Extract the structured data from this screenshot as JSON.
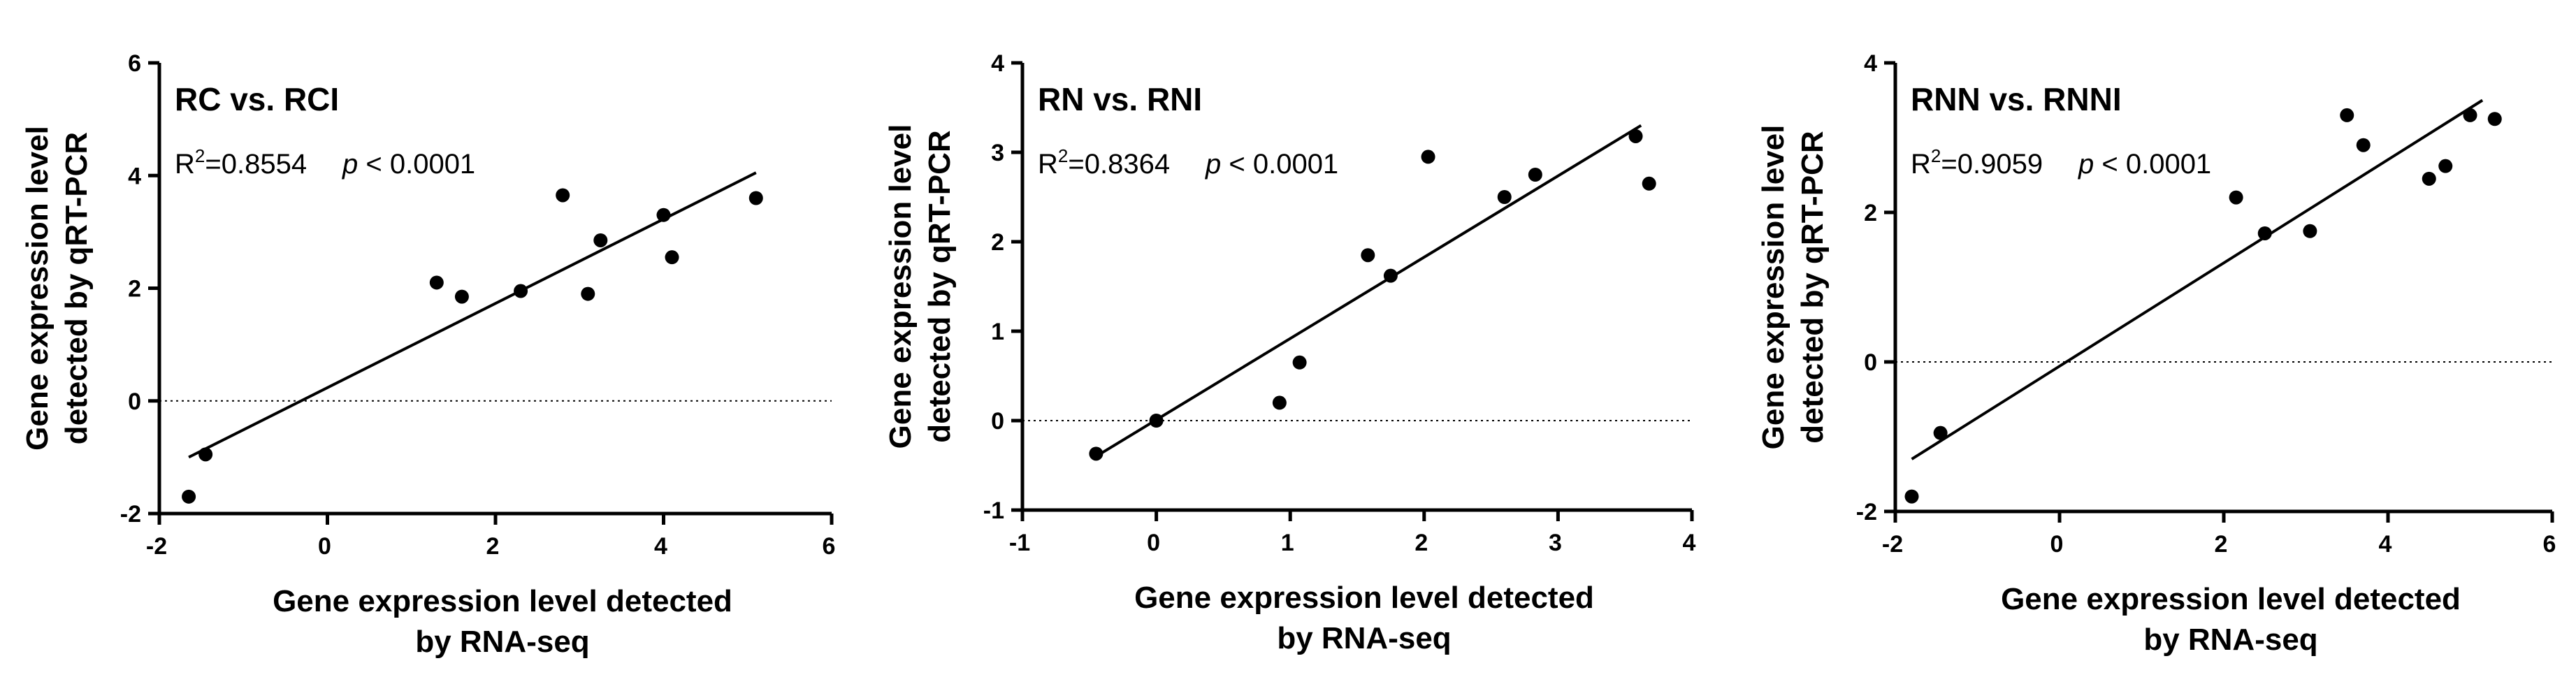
{
  "chart_data": [
    {
      "type": "scatter",
      "title": "RC vs. RCI",
      "r2_label": "=0.8554",
      "p_label": "p < 0.0001",
      "xlabel": [
        "Gene expression level detected",
        "by RNA-seq"
      ],
      "ylabel": [
        "Gene expression level",
        "detected by qRT-PCR"
      ],
      "xlim": [
        -2,
        6
      ],
      "ylim": [
        -2,
        6
      ],
      "xticks": [
        -2,
        0,
        2,
        4,
        6
      ],
      "yticks": [
        -2,
        0,
        2,
        4,
        6
      ],
      "points": [
        {
          "x": -1.65,
          "y": -1.7
        },
        {
          "x": -1.45,
          "y": -0.95
        },
        {
          "x": 1.3,
          "y": 2.1
        },
        {
          "x": 1.6,
          "y": 1.85
        },
        {
          "x": 2.3,
          "y": 1.95
        },
        {
          "x": 2.8,
          "y": 3.65
        },
        {
          "x": 3.1,
          "y": 1.9
        },
        {
          "x": 3.25,
          "y": 2.85
        },
        {
          "x": 4.0,
          "y": 3.3
        },
        {
          "x": 4.1,
          "y": 2.55
        },
        {
          "x": 5.1,
          "y": 3.6
        }
      ],
      "fit_line": [
        {
          "x": -1.65,
          "y": -1.0
        },
        {
          "x": 5.1,
          "y": 4.05
        }
      ],
      "reference_y": 0
    },
    {
      "type": "scatter",
      "title": "RN vs. RNI",
      "r2_label": "=0.8364",
      "p_label": "p < 0.0001",
      "xlabel": [
        "Gene expression level detected",
        "by RNA-seq"
      ],
      "ylabel": [
        "Gene expression level",
        "detected by qRT-PCR"
      ],
      "xlim": [
        -1,
        4
      ],
      "ylim": [
        -1,
        4
      ],
      "xticks": [
        -1,
        0,
        1,
        2,
        3,
        4
      ],
      "yticks": [
        -1,
        0,
        1,
        2,
        3,
        4
      ],
      "points": [
        {
          "x": -0.45,
          "y": -0.37
        },
        {
          "x": 0.0,
          "y": 0.0
        },
        {
          "x": 0.92,
          "y": 0.2
        },
        {
          "x": 1.07,
          "y": 0.65
        },
        {
          "x": 1.58,
          "y": 1.85
        },
        {
          "x": 1.75,
          "y": 1.62
        },
        {
          "x": 2.03,
          "y": 2.95
        },
        {
          "x": 2.6,
          "y": 2.5
        },
        {
          "x": 2.83,
          "y": 2.75
        },
        {
          "x": 3.58,
          "y": 3.18
        },
        {
          "x": 3.68,
          "y": 2.65
        }
      ],
      "fit_line": [
        {
          "x": -0.45,
          "y": -0.4
        },
        {
          "x": 3.62,
          "y": 3.3
        }
      ],
      "reference_y": 0
    },
    {
      "type": "scatter",
      "title": "RNN vs. RNNI",
      "r2_label": "=0.9059",
      "p_label": "p < 0.0001",
      "xlabel": [
        "Gene expression level detected",
        "by RNA-seq"
      ],
      "ylabel": [
        "Gene expression level",
        "detected by qRT-PCR"
      ],
      "xlim": [
        -2,
        6
      ],
      "ylim": [
        -2,
        4
      ],
      "xticks": [
        -2,
        0,
        2,
        4,
        6
      ],
      "yticks": [
        -2,
        0,
        2,
        4
      ],
      "points": [
        {
          "x": -1.8,
          "y": -1.8
        },
        {
          "x": -1.45,
          "y": -0.95
        },
        {
          "x": 2.15,
          "y": 2.2
        },
        {
          "x": 2.5,
          "y": 1.72
        },
        {
          "x": 3.05,
          "y": 1.75
        },
        {
          "x": 3.5,
          "y": 3.3
        },
        {
          "x": 3.7,
          "y": 2.9
        },
        {
          "x": 4.5,
          "y": 2.45
        },
        {
          "x": 4.7,
          "y": 2.62
        },
        {
          "x": 5.0,
          "y": 3.3
        },
        {
          "x": 5.3,
          "y": 3.25
        }
      ],
      "fit_line": [
        {
          "x": -1.8,
          "y": -1.3
        },
        {
          "x": 5.15,
          "y": 3.5
        }
      ],
      "reference_y": 0
    }
  ]
}
